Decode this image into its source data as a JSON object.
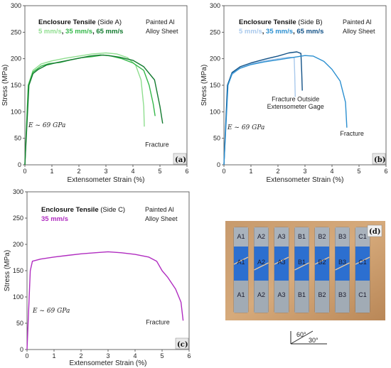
{
  "chart_data": [
    {
      "type": "line",
      "panel": "(a)",
      "title_bold": "Enclosure Tensile",
      "title_rest": " (Side A)",
      "material": [
        "Painted Al",
        "Alloy Sheet"
      ],
      "rates": [
        {
          "text": "5 mm/s",
          "color": "#8fde8f"
        },
        {
          "text": ", ",
          "color": "#111111"
        },
        {
          "text": "35 mm/s",
          "color": "#35b84a"
        },
        {
          "text": ", ",
          "color": "#111111"
        },
        {
          "text": "65 mm/s",
          "color": "#137a2f"
        }
      ],
      "xlabel": "Extensometer Strain (%)",
      "ylabel": "Stress (MPa)",
      "xlim": [
        0,
        6
      ],
      "ylim": [
        0,
        300
      ],
      "xticks": [
        0,
        1,
        2,
        3,
        4,
        5,
        6
      ],
      "yticks": [
        0,
        50,
        100,
        150,
        200,
        250,
        300
      ],
      "modulus": "E ~ 69 GPa",
      "annotations": [
        {
          "text": "Fracture",
          "x": 4.45,
          "y": 34
        }
      ],
      "series": [
        {
          "color": "#8fde8f",
          "points": [
            [
              0,
              0
            ],
            [
              0.12,
              150
            ],
            [
              0.3,
              178
            ],
            [
              0.6,
              190
            ],
            [
              1,
              196
            ],
            [
              1.5,
              201
            ],
            [
              2,
              205
            ],
            [
              2.5,
              209
            ],
            [
              3,
              211
            ],
            [
              3.4,
              209
            ],
            [
              3.8,
              202
            ],
            [
              4.1,
              188
            ],
            [
              4.3,
              160
            ],
            [
              4.4,
              110
            ],
            [
              4.42,
              72
            ]
          ]
        },
        {
          "color": "#35b84a",
          "points": [
            [
              0,
              0
            ],
            [
              0.13,
              150
            ],
            [
              0.3,
              175
            ],
            [
              0.6,
              186
            ],
            [
              0.9,
              191
            ],
            [
              1.3,
              193
            ],
            [
              1.7,
              198
            ],
            [
              2.1,
              202
            ],
            [
              2.5,
              204
            ],
            [
              2.9,
              207
            ],
            [
              3.2,
              205
            ],
            [
              3.6,
              200
            ],
            [
              4.0,
              192
            ],
            [
              4.4,
              178
            ],
            [
              4.6,
              150
            ],
            [
              4.75,
              115
            ],
            [
              4.82,
              92
            ]
          ]
        },
        {
          "color": "#137a2f",
          "points": [
            [
              0,
              0
            ],
            [
              0.15,
              150
            ],
            [
              0.3,
              172
            ],
            [
              0.5,
              180
            ],
            [
              0.8,
              188
            ],
            [
              1.2,
              193
            ],
            [
              1.6,
              197
            ],
            [
              2.0,
              201
            ],
            [
              2.4,
              205
            ],
            [
              2.8,
              207
            ],
            [
              3.1,
              206
            ],
            [
              3.5,
              203
            ],
            [
              4.0,
              197
            ],
            [
              4.4,
              185
            ],
            [
              4.8,
              160
            ],
            [
              5.0,
              110
            ],
            [
              5.1,
              78
            ]
          ]
        }
      ]
    },
    {
      "type": "line",
      "panel": "(b)",
      "title_bold": "Enclosure Tensile",
      "title_rest": " (Side B)",
      "material": [
        "Painted Al",
        "Alloy Sheet"
      ],
      "rates": [
        {
          "text": "5 mm/s",
          "color": "#a9c9ec"
        },
        {
          "text": ", ",
          "color": "#111111"
        },
        {
          "text": "35 mm/s",
          "color": "#2b8fd0"
        },
        {
          "text": ", ",
          "color": "#111111"
        },
        {
          "text": "65 mm/s",
          "color": "#135287"
        }
      ],
      "xlabel": "Extensometer Strain (%)",
      "ylabel": "Stress (MPa)",
      "xlim": [
        0,
        6
      ],
      "ylim": [
        0,
        300
      ],
      "xticks": [
        0,
        1,
        2,
        3,
        4,
        5,
        6
      ],
      "yticks": [
        0,
        50,
        100,
        150,
        200,
        250,
        300
      ],
      "modulus": "E ~ 69 GPa",
      "annotations": [
        {
          "text": "Fracture Outside",
          "x": 2.65,
          "y": 120
        },
        {
          "text": "Extensometer Gage",
          "x": 2.65,
          "y": 106
        },
        {
          "text": "Fracture",
          "x": 4.3,
          "y": 55
        }
      ],
      "series": [
        {
          "color": "#a9c9ec",
          "points": [
            [
              0,
              0
            ],
            [
              0.14,
              150
            ],
            [
              0.3,
              170
            ],
            [
              0.6,
              183
            ],
            [
              1,
              190
            ],
            [
              1.5,
              196
            ],
            [
              2,
              200
            ],
            [
              2.4,
              203
            ],
            [
              2.6,
              202
            ],
            [
              2.62,
              170
            ],
            [
              2.64,
              128
            ]
          ]
        },
        {
          "color": "#135287",
          "points": [
            [
              0,
              0
            ],
            [
              0.13,
              150
            ],
            [
              0.3,
              174
            ],
            [
              0.6,
              185
            ],
            [
              1,
              192
            ],
            [
              1.5,
              199
            ],
            [
              2,
              205
            ],
            [
              2.4,
              211
            ],
            [
              2.7,
              213
            ],
            [
              2.85,
              210
            ],
            [
              2.88,
              175
            ],
            [
              2.9,
              140
            ]
          ]
        },
        {
          "color": "#2b8fd0",
          "points": [
            [
              0,
              0
            ],
            [
              0.15,
              150
            ],
            [
              0.3,
              172
            ],
            [
              0.6,
              182
            ],
            [
              1,
              189
            ],
            [
              1.5,
              194
            ],
            [
              2,
              198
            ],
            [
              2.5,
              202
            ],
            [
              3,
              206
            ],
            [
              3.3,
              205
            ],
            [
              3.7,
              195
            ],
            [
              4.0,
              180
            ],
            [
              4.3,
              158
            ],
            [
              4.5,
              118
            ],
            [
              4.55,
              70
            ]
          ]
        }
      ]
    },
    {
      "type": "line",
      "panel": "(c)",
      "title_bold": "Enclosure Tensile",
      "title_rest": " (Side C)",
      "material": [
        "Painted Al",
        "Alloy Sheet"
      ],
      "rates": [
        {
          "text": "35 mm/s",
          "color": "#b02cc0"
        }
      ],
      "xlabel": "Extensometer Strain (%)",
      "ylabel": "Stress (MPa)",
      "xlim": [
        0,
        6
      ],
      "ylim": [
        0,
        300
      ],
      "xticks": [
        0,
        1,
        2,
        3,
        4,
        5,
        6
      ],
      "yticks": [
        0,
        50,
        100,
        150,
        200,
        250,
        300
      ],
      "modulus": "E ~ 69 GPa",
      "annotations": [
        {
          "text": "Fracture",
          "x": 4.4,
          "y": 48
        }
      ],
      "series": [
        {
          "color": "#b02cc0",
          "points": [
            [
              0,
              0
            ],
            [
              0.12,
              150
            ],
            [
              0.2,
              168
            ],
            [
              0.5,
              172
            ],
            [
              1,
              176
            ],
            [
              1.5,
              179
            ],
            [
              2,
              182
            ],
            [
              2.5,
              184
            ],
            [
              3,
              186
            ],
            [
              3.5,
              184
            ],
            [
              4,
              181
            ],
            [
              4.5,
              176
            ],
            [
              4.8,
              168
            ],
            [
              5.0,
              150
            ],
            [
              5.2,
              138
            ],
            [
              5.5,
              115
            ],
            [
              5.7,
              90
            ],
            [
              5.78,
              55
            ]
          ]
        }
      ]
    }
  ],
  "photo": {
    "tag": "(d)",
    "top_labels": [
      "A1",
      "A2",
      "A3",
      "B1",
      "B2",
      "B3",
      "C1"
    ],
    "mid_labels": [
      "A1",
      "A2",
      "A3",
      "B1",
      "B2",
      "B3",
      "C1"
    ],
    "bottom_labels": [
      "A1",
      "A2",
      "A3",
      "B1",
      "B2",
      "B3",
      "C1"
    ]
  },
  "angle_legend": {
    "upper": "60°",
    "lower": "30°"
  }
}
